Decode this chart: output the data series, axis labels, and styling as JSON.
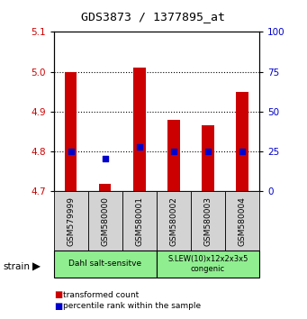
{
  "title": "GDS3873 / 1377895_at",
  "samples": [
    "GSM579999",
    "GSM580000",
    "GSM580001",
    "GSM580002",
    "GSM580003",
    "GSM580004"
  ],
  "red_values": [
    5.0,
    4.72,
    5.01,
    4.88,
    4.865,
    4.95
  ],
  "blue_values": [
    4.8,
    4.783,
    4.812,
    4.8,
    4.8,
    4.8
  ],
  "ylim_left": [
    4.7,
    5.1
  ],
  "ylim_right": [
    0,
    100
  ],
  "yticks_left": [
    4.7,
    4.8,
    4.9,
    5.0,
    5.1
  ],
  "yticks_right": [
    0,
    25,
    50,
    75,
    100
  ],
  "group1_label": "Dahl salt-sensitve",
  "group2_label": "S.LEW(10)x12x2x3x5\ncongenic",
  "group1_indices": [
    0,
    1,
    2
  ],
  "group2_indices": [
    3,
    4,
    5
  ],
  "bar_color": "#cc0000",
  "dot_color": "#0000cc",
  "group_bg_color": "#90ee90",
  "sample_bg_color": "#d3d3d3",
  "legend_red_label": "transformed count",
  "legend_blue_label": "percentile rank within the sample",
  "strain_label": "strain",
  "bar_bottom": 4.7,
  "bar_width": 0.35,
  "dot_size": 25,
  "left_color": "#cc0000",
  "right_color": "#0000cc"
}
